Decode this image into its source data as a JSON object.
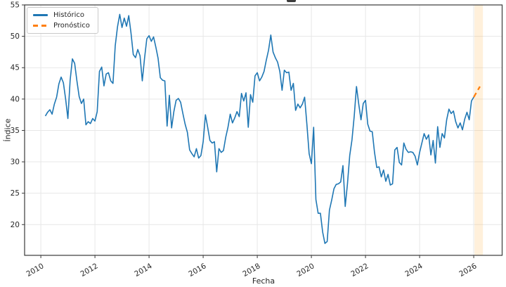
{
  "figure": {
    "xlabel": "Fecha",
    "ylabel": "Índice"
  },
  "legend": {
    "items": [
      {
        "label": "Histórico",
        "color": "#1f77b4",
        "style": "solid"
      },
      {
        "label": "Pronóstico",
        "color": "#ff7f0e",
        "style": "dashed"
      }
    ]
  },
  "colors": {
    "historical_line": "#1f77b4",
    "forecast_line": "#ff7f0e",
    "forecast_band": "#ffa21c",
    "gridline": "#e7e7e7",
    "spine": "#3a3a3a",
    "tick_label": "#262626"
  },
  "chart_data": {
    "type": "line",
    "title": "",
    "xlabel": "Fecha",
    "ylabel": "Índice",
    "xlim": [
      2009.4,
      2027.05
    ],
    "ylim": [
      15.1,
      55.0
    ],
    "xticks": [
      2010,
      2012,
      2014,
      2016,
      2018,
      2020,
      2022,
      2024,
      2026
    ],
    "yticks": [
      20,
      25,
      30,
      35,
      40,
      45,
      50,
      55
    ],
    "grid": true,
    "legend_position": "upper-left",
    "x_unit": "decimal_year_monthly",
    "series": [
      {
        "name": "Histórico",
        "color": "#1f77b4",
        "style": "solid",
        "x_start": 2010.1667,
        "x_step_months": 1,
        "values": [
          37.3,
          37.9,
          38.3,
          37.6,
          39.2,
          40.3,
          42.4,
          43.5,
          42.6,
          40.0,
          36.9,
          43.0,
          46.4,
          45.7,
          42.9,
          40.4,
          39.3,
          40.0,
          35.9,
          36.4,
          36.1,
          36.9,
          36.5,
          38.0,
          44.4,
          45.1,
          42.1,
          44.0,
          44.2,
          42.9,
          42.5,
          48.5,
          51.5,
          53.5,
          51.4,
          52.9,
          51.6,
          53.3,
          50.5,
          47.1,
          46.6,
          47.9,
          46.9,
          42.9,
          46.5,
          49.6,
          50.1,
          49.2,
          49.9,
          48.3,
          46.5,
          43.4,
          43.0,
          42.9,
          35.7,
          40.6,
          35.4,
          38.0,
          39.8,
          40.1,
          39.5,
          37.7,
          36.0,
          34.7,
          31.9,
          31.3,
          30.8,
          32.1,
          30.6,
          31.0,
          33.2,
          37.5,
          35.5,
          33.4,
          33.0,
          33.2,
          28.4,
          32.1,
          31.5,
          31.8,
          33.9,
          35.5,
          37.6,
          36.2,
          37.0,
          38.0,
          37.2,
          40.9,
          39.7,
          41.0,
          35.5,
          40.7,
          39.5,
          43.7,
          44.2,
          42.9,
          43.5,
          44.4,
          46.2,
          47.8,
          50.2,
          47.5,
          46.6,
          45.9,
          44.4,
          41.4,
          44.6,
          44.2,
          44.3,
          41.4,
          42.5,
          38.2,
          39.2,
          38.6,
          39.2,
          40.3,
          36.0,
          31.3,
          29.7,
          35.5,
          24.0,
          21.8,
          21.8,
          18.8,
          17.0,
          17.3,
          22.3,
          23.9,
          25.7,
          26.4,
          26.5,
          26.8,
          29.4,
          22.9,
          26.5,
          31.0,
          33.5,
          37.3,
          42.0,
          39.2,
          36.7,
          39.3,
          39.8,
          36.0,
          34.9,
          34.8,
          31.5,
          29.1,
          29.2,
          27.6,
          28.7,
          26.9,
          28.0,
          26.3,
          26.5,
          31.9,
          32.3,
          29.9,
          29.5,
          33.0,
          32.0,
          31.5,
          31.6,
          31.5,
          30.9,
          29.5,
          31.5,
          33.0,
          34.5,
          33.6,
          34.3,
          31.1,
          33.4,
          29.8,
          35.6,
          32.3,
          34.5,
          33.8,
          36.7,
          38.4,
          37.7,
          38.1,
          36.4,
          35.4,
          36.2,
          35.1,
          36.8,
          37.9,
          36.7,
          39.7,
          40.3
        ]
      },
      {
        "name": "Pronóstico",
        "color": "#ff7f0e",
        "style": "dashed",
        "x": [
          2026.0,
          2026.12,
          2026.23
        ],
        "values": [
          40.3,
          41.2,
          42.0
        ]
      }
    ],
    "forecast_band": {
      "x0": 2026.03,
      "x1": 2026.34,
      "color": "#ffa21c",
      "opacity": 0.16
    }
  }
}
